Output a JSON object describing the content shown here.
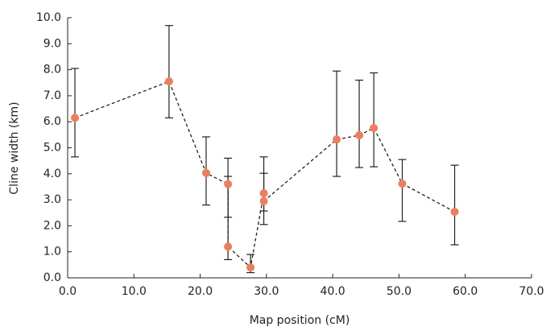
{
  "chart_data": {
    "type": "line",
    "x_label": "Map position (cM)",
    "y_label": "Cline width (km)",
    "x": [
      1.1,
      15.3,
      20.9,
      24.2,
      24.2,
      27.6,
      29.6,
      29.6,
      40.6,
      44.0,
      46.2,
      50.5,
      58.4
    ],
    "values": [
      6.15,
      7.55,
      4.03,
      3.6,
      1.2,
      0.4,
      3.25,
      2.95,
      5.32,
      5.48,
      5.76,
      3.62,
      2.54
    ],
    "lower": [
      4.65,
      6.15,
      2.8,
      2.33,
      0.7,
      0.2,
      2.57,
      2.05,
      3.9,
      4.24,
      4.27,
      2.17,
      1.27
    ],
    "upper": [
      8.05,
      9.7,
      5.42,
      4.6,
      3.9,
      0.9,
      4.65,
      4.02,
      7.95,
      7.6,
      7.88,
      4.55,
      4.33
    ],
    "color": "#ef7d5a",
    "line_color": "#222222",
    "line_dashed": true,
    "xlim": [
      0,
      70
    ],
    "ylim": [
      0,
      10
    ],
    "xticks": [
      {
        "value": 0,
        "label": "0.0"
      },
      {
        "value": 10,
        "label": "10.0"
      },
      {
        "value": 20,
        "label": "20.0"
      },
      {
        "value": 30,
        "label": "30.0"
      },
      {
        "value": 40,
        "label": "40.0"
      },
      {
        "value": 50,
        "label": "50.0"
      },
      {
        "value": 60,
        "label": "60.0"
      },
      {
        "value": 70,
        "label": "70.0"
      }
    ],
    "yticks": [
      {
        "value": 0,
        "label": "0.0"
      },
      {
        "value": 1,
        "label": "1.0"
      },
      {
        "value": 2,
        "label": "2.0"
      },
      {
        "value": 3,
        "label": "3.0"
      },
      {
        "value": 4,
        "label": "4.0"
      },
      {
        "value": 5,
        "label": "5.0"
      },
      {
        "value": 6,
        "label": "6.0"
      },
      {
        "value": 7,
        "label": "7.0"
      },
      {
        "value": 8,
        "label": "8.0"
      },
      {
        "value": 9,
        "label": "9.0"
      },
      {
        "value": 10,
        "label": "10.0"
      }
    ],
    "grid": false
  }
}
